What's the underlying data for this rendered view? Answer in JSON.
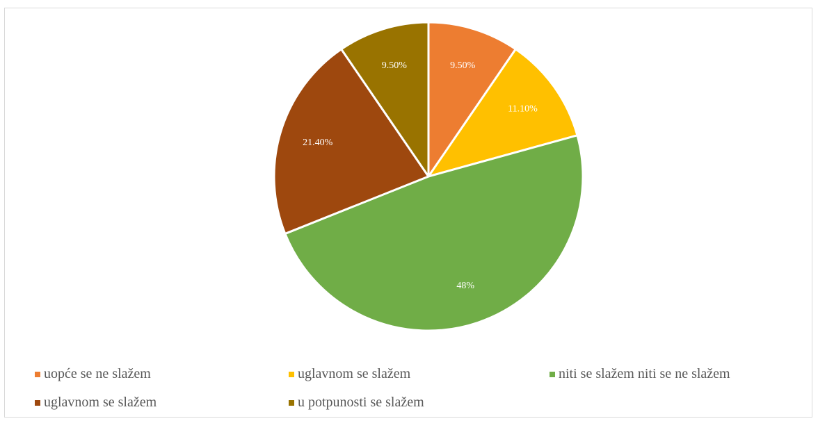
{
  "chart_data": {
    "type": "pie",
    "title": "",
    "slices": [
      {
        "name": "uopće se ne slažem",
        "value": 9.5,
        "label": "9.50%",
        "color": "#ED7D31"
      },
      {
        "name": "uglavnom se slažem",
        "value": 11.1,
        "label": "11.10%",
        "color": "#FFC000"
      },
      {
        "name": "niti se slažem niti se ne slažem",
        "value": 48,
        "label": "48%",
        "color": "#70AD47"
      },
      {
        "name": "uglavnom se slažem",
        "value": 21.4,
        "label": "21.40%",
        "color": "#9E480E"
      },
      {
        "name": "u potpunosti se slažem",
        "value": 9.5,
        "label": "9.50%",
        "color": "#997300"
      }
    ],
    "legend_position": "bottom"
  }
}
